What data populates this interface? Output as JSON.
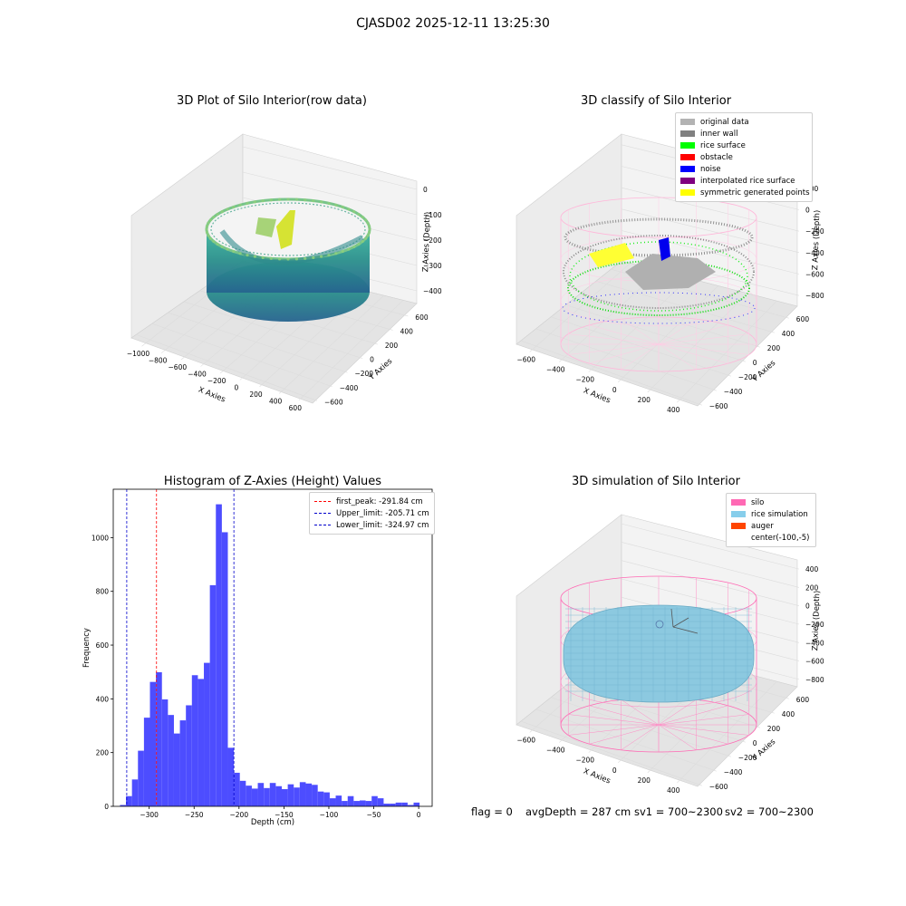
{
  "suptitle": "CJASD02 2025-12-11 13:25:30",
  "panels": {
    "p1": {
      "title": "3D Plot of Silo Interior(row data)",
      "xlabel": "X Axies",
      "ylabel": "Y Axies",
      "zlabel": "Z Axies (Depth)",
      "xticks": [
        "−1000",
        "−800",
        "−600",
        "−400",
        "−200",
        "0",
        "200",
        "400",
        "600"
      ],
      "yticks": [
        "−600",
        "−400",
        "−200",
        "0",
        "200",
        "400",
        "600"
      ],
      "zticks": [
        "0",
        "−100",
        "−200",
        "−300",
        "−400"
      ]
    },
    "p2": {
      "title": "3D classify of Silo Interior",
      "xlabel": "X Axies",
      "ylabel": "Y Axies",
      "zlabel": "Z Axies (Depth)",
      "xticks": [
        "−600",
        "−400",
        "−200",
        "0",
        "200",
        "400"
      ],
      "yticks": [
        "−600",
        "−400",
        "−200",
        "0",
        "200",
        "400",
        "600"
      ],
      "zticks": [
        "200",
        "0",
        "−200",
        "−400",
        "−600",
        "−800"
      ],
      "legend": [
        {
          "label": "original data",
          "color": "#b3b3b3"
        },
        {
          "label": "inner wall",
          "color": "#808080"
        },
        {
          "label": "rice surface",
          "color": "#00ff00"
        },
        {
          "label": "obstacle",
          "color": "#ff0000"
        },
        {
          "label": "noise",
          "color": "#0000ff"
        },
        {
          "label": "interpolated rice surface",
          "color": "#800080"
        },
        {
          "label": "symmetric generated points",
          "color": "#ffff00"
        }
      ]
    },
    "p4": {
      "title": "3D simulation of Silo Interior",
      "xlabel": "X Axies",
      "ylabel": "Y Axies",
      "zlabel": "Z Axies (Depth)",
      "xticks": [
        "−600",
        "−400",
        "−200",
        "0",
        "200",
        "400"
      ],
      "yticks": [
        "−600",
        "−400",
        "−200",
        "0",
        "200",
        "400",
        "600"
      ],
      "zticks": [
        "400",
        "200",
        "0",
        "−200",
        "−400",
        "−600",
        "−800"
      ],
      "legend": [
        {
          "label": "silo",
          "color": "#ff69b4"
        },
        {
          "label": "rice simulation",
          "color": "#87ceeb"
        },
        {
          "label": "auger",
          "color": "#ff4500"
        },
        {
          "label": "center(-100,-5)",
          "color": ""
        }
      ]
    }
  },
  "status": {
    "flag": "flag = 0",
    "avg": "avgDepth = 287 cm",
    "sv1": "sv1 = 700~2300",
    "sv2": "sv2 = 700~2300"
  },
  "chart_data": [
    {
      "type": "bar",
      "title": "Histogram of Z-Axies (Height) Values",
      "xlabel": "Depth (cm)",
      "ylabel": "Frequency",
      "xlim": [
        -340,
        15
      ],
      "ylim": [
        0,
        1180
      ],
      "xticks": [
        -300,
        -250,
        -200,
        -150,
        -100,
        -50,
        0
      ],
      "yticks": [
        0,
        200,
        400,
        600,
        800,
        1000
      ],
      "bin_edges_start": -332.5,
      "bin_width": 6.67,
      "values": [
        5,
        38,
        100,
        207,
        330,
        463,
        499,
        398,
        340,
        271,
        320,
        376,
        488,
        474,
        534,
        823,
        1124,
        1020,
        218,
        125,
        95,
        77,
        66,
        87,
        68,
        87,
        75,
        64,
        82,
        70,
        90,
        85,
        80,
        55,
        52,
        30,
        40,
        20,
        38,
        20,
        22,
        20,
        38,
        30,
        10,
        10,
        14,
        14,
        5,
        14
      ],
      "vlines": [
        {
          "label": "first_peak: -291.84 cm",
          "x": -291.84,
          "color": "#ff0000"
        },
        {
          "label": "Upper_limit: -205.71 cm",
          "x": -205.71,
          "color": "#0000cc"
        },
        {
          "label": "Lower_limit: -324.97 cm",
          "x": -324.97,
          "color": "#0000cc"
        }
      ],
      "bar_color": "#4d4dff"
    }
  ]
}
